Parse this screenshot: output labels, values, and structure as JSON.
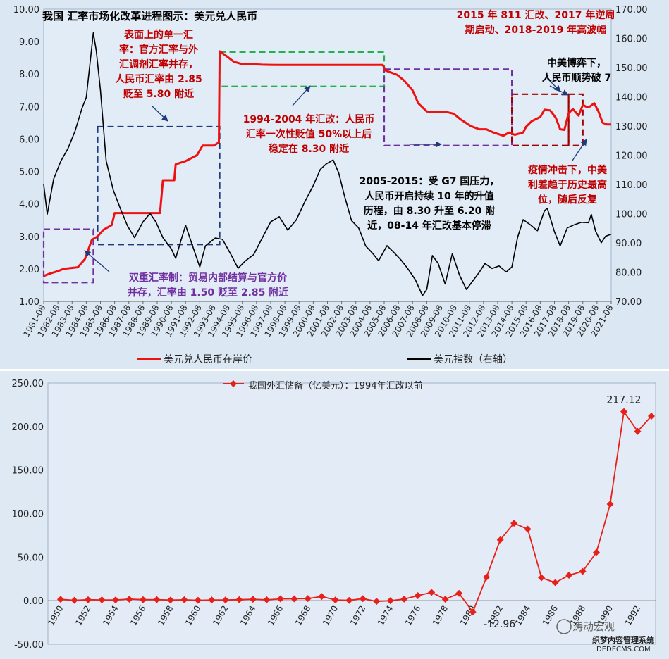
{
  "chart_data": [
    {
      "type": "line",
      "title": "我国 汇率市场化改革进程图示：美元兑人民币",
      "x_ticks": [
        "1981-08",
        "1982-08",
        "1983-08",
        "1984-08",
        "1985-08",
        "1986-08",
        "1987-08",
        "1988-08",
        "1989-08",
        "1990-08",
        "1991-08",
        "1992-08",
        "1993-08",
        "1994-08",
        "1995-08",
        "1996-08",
        "1997-08",
        "1998-08",
        "1999-08",
        "2000-08",
        "2001-08",
        "2002-08",
        "2003-08",
        "2004-08",
        "2005-08",
        "2006-08",
        "2007-08",
        "2008-08",
        "2009-08",
        "2010-08",
        "2011-08",
        "2012-08",
        "2013-08",
        "2014-08",
        "2015-08",
        "2016-08",
        "2017-08",
        "2018-08",
        "2019-08",
        "2020-08",
        "2021-08"
      ],
      "y_left_ticks": [
        "1.00",
        "2.00",
        "3.00",
        "4.00",
        "5.00",
        "6.00",
        "7.00",
        "8.00",
        "9.00",
        "10.00"
      ],
      "y_right_ticks": [
        "70.00",
        "80.00",
        "90.00",
        "100.00",
        "110.00",
        "120.00",
        "130.00",
        "140.00",
        "150.00",
        "160.00",
        "170.00"
      ],
      "ylim_left": [
        1,
        10
      ],
      "ylim_right": [
        70,
        170
      ],
      "legend_position": "bottom",
      "series": [
        {
          "name": "美元兑人民币在岸价",
          "axis": "left",
          "color": "#ee1111",
          "points": [
            [
              1981.6,
              1.78
            ],
            [
              1982.0,
              1.85
            ],
            [
              1982.6,
              1.93
            ],
            [
              1983.0,
              2.0
            ],
            [
              1984.0,
              2.05
            ],
            [
              1984.5,
              2.3
            ],
            [
              1985.0,
              2.9
            ],
            [
              1985.4,
              3.0
            ],
            [
              1985.8,
              3.2
            ],
            [
              1986.4,
              3.35
            ],
            [
              1986.6,
              3.72
            ],
            [
              1988.0,
              3.72
            ],
            [
              1989.8,
              3.72
            ],
            [
              1990.0,
              4.73
            ],
            [
              1990.8,
              4.73
            ],
            [
              1990.9,
              5.22
            ],
            [
              1991.6,
              5.32
            ],
            [
              1992.4,
              5.5
            ],
            [
              1992.8,
              5.8
            ],
            [
              1993.6,
              5.8
            ],
            [
              1993.95,
              5.9
            ],
            [
              1994.0,
              8.7
            ],
            [
              1994.5,
              8.55
            ],
            [
              1995.0,
              8.38
            ],
            [
              1995.5,
              8.32
            ],
            [
              1996.0,
              8.31
            ],
            [
              1997.0,
              8.29
            ],
            [
              1998.0,
              8.28
            ],
            [
              2000.0,
              8.28
            ],
            [
              2003.0,
              8.28
            ],
            [
              2005.5,
              8.28
            ],
            [
              2005.7,
              8.11
            ],
            [
              2006.5,
              7.98
            ],
            [
              2007.0,
              7.8
            ],
            [
              2007.6,
              7.5
            ],
            [
              2008.0,
              7.1
            ],
            [
              2008.6,
              6.85
            ],
            [
              2009.0,
              6.83
            ],
            [
              2010.0,
              6.83
            ],
            [
              2010.5,
              6.78
            ],
            [
              2011.0,
              6.6
            ],
            [
              2011.7,
              6.4
            ],
            [
              2012.3,
              6.3
            ],
            [
              2012.8,
              6.3
            ],
            [
              2013.3,
              6.2
            ],
            [
              2014.0,
              6.1
            ],
            [
              2014.4,
              6.2
            ],
            [
              2014.8,
              6.13
            ],
            [
              2015.4,
              6.2
            ],
            [
              2015.6,
              6.38
            ],
            [
              2016.0,
              6.55
            ],
            [
              2016.6,
              6.68
            ],
            [
              2016.9,
              6.9
            ],
            [
              2017.3,
              6.88
            ],
            [
              2017.7,
              6.65
            ],
            [
              2018.0,
              6.3
            ],
            [
              2018.3,
              6.28
            ],
            [
              2018.6,
              6.8
            ],
            [
              2018.9,
              6.92
            ],
            [
              2019.3,
              6.72
            ],
            [
              2019.6,
              7.05
            ],
            [
              2019.9,
              6.98
            ],
            [
              2020.1,
              7.0
            ],
            [
              2020.4,
              7.1
            ],
            [
              2020.7,
              6.85
            ],
            [
              2021.0,
              6.5
            ],
            [
              2021.3,
              6.45
            ],
            [
              2021.6,
              6.45
            ]
          ]
        },
        {
          "name": "美元指数（右轴）",
          "axis": "right",
          "color": "#000000",
          "points": [
            [
              1981.6,
              110
            ],
            [
              1981.85,
              100
            ],
            [
              1982.3,
              112
            ],
            [
              1982.8,
              118
            ],
            [
              1983.3,
              122
            ],
            [
              1983.8,
              128
            ],
            [
              1984.3,
              136
            ],
            [
              1984.6,
              140
            ],
            [
              1985.1,
              162
            ],
            [
              1985.3,
              156
            ],
            [
              1985.6,
              142
            ],
            [
              1986.0,
              118
            ],
            [
              1986.5,
              108
            ],
            [
              1987.0,
              102
            ],
            [
              1987.5,
              96
            ],
            [
              1988.0,
              92
            ],
            [
              1988.6,
              97
            ],
            [
              1989.1,
              100
            ],
            [
              1989.5,
              97
            ],
            [
              1990.0,
              92
            ],
            [
              1990.6,
              88
            ],
            [
              1990.9,
              85
            ],
            [
              1991.3,
              91
            ],
            [
              1991.6,
              96
            ],
            [
              1992.0,
              90
            ],
            [
              1992.6,
              82
            ],
            [
              1993.0,
              89
            ],
            [
              1993.7,
              92
            ],
            [
              1994.2,
              91
            ],
            [
              1994.8,
              86
            ],
            [
              1995.3,
              81
            ],
            [
              1995.8,
              84
            ],
            [
              1996.4,
              86
            ],
            [
              1997.0,
              92
            ],
            [
              1997.6,
              97
            ],
            [
              1998.2,
              99
            ],
            [
              1998.8,
              94
            ],
            [
              1999.4,
              98
            ],
            [
              2000.0,
              104
            ],
            [
              2000.6,
              110
            ],
            [
              2001.1,
              115
            ],
            [
              2001.5,
              117
            ],
            [
              2002.0,
              118
            ],
            [
              2002.4,
              114
            ],
            [
              2002.8,
              106
            ],
            [
              2003.3,
              98
            ],
            [
              2003.8,
              95
            ],
            [
              2004.3,
              89
            ],
            [
              2004.8,
              86
            ],
            [
              2005.2,
              84
            ],
            [
              2005.8,
              89
            ],
            [
              2006.3,
              87
            ],
            [
              2006.8,
              84
            ],
            [
              2007.3,
              81
            ],
            [
              2007.8,
              77
            ],
            [
              2008.3,
              72
            ],
            [
              2008.6,
              74
            ],
            [
              2009.0,
              86
            ],
            [
              2009.4,
              83
            ],
            [
              2009.9,
              76
            ],
            [
              2010.4,
              86
            ],
            [
              2010.9,
              79
            ],
            [
              2011.4,
              74
            ],
            [
              2011.8,
              77
            ],
            [
              2012.3,
              80
            ],
            [
              2012.7,
              83
            ],
            [
              2013.2,
              81
            ],
            [
              2013.7,
              82
            ],
            [
              2014.2,
              80
            ],
            [
              2014.6,
              82
            ],
            [
              2015.0,
              92
            ],
            [
              2015.4,
              98
            ],
            [
              2015.9,
              96
            ],
            [
              2016.4,
              94
            ],
            [
              2016.9,
              101
            ],
            [
              2017.1,
              102
            ],
            [
              2017.6,
              94
            ],
            [
              2018.0,
              89
            ],
            [
              2018.5,
              95
            ],
            [
              2019.0,
              96
            ],
            [
              2019.5,
              97
            ],
            [
              2020.0,
              97
            ],
            [
              2020.2,
              100
            ],
            [
              2020.5,
              94
            ],
            [
              2020.9,
              90
            ],
            [
              2021.2,
              92
            ],
            [
              2021.6,
              93
            ]
          ]
        }
      ]
    },
    {
      "type": "line",
      "title": "",
      "categories": [
        "1950",
        "1951",
        "1952",
        "1953",
        "1954",
        "1955",
        "1956",
        "1957",
        "1958",
        "1959",
        "1960",
        "1961",
        "1962",
        "1963",
        "1964",
        "1965",
        "1966",
        "1967",
        "1968",
        "1969",
        "1970",
        "1971",
        "1972",
        "1973",
        "1974",
        "1975",
        "1976",
        "1977",
        "1978",
        "1979",
        "1980",
        "1981",
        "1982",
        "1983",
        "1984",
        "1985",
        "1986",
        "1987",
        "1988",
        "1989",
        "1990",
        "1991",
        "1992",
        "1993"
      ],
      "x_tick_labels": [
        "1950",
        "1952",
        "1954",
        "1956",
        "1958",
        "1960",
        "1962",
        "1964",
        "1966",
        "1968",
        "1970",
        "1972",
        "1974",
        "1976",
        "1978",
        "1980",
        "1982",
        "1984",
        "1986",
        "1988",
        "1990",
        "1992"
      ],
      "y_ticks": [
        "-50.00",
        "0.00",
        "50.00",
        "100.00",
        "150.00",
        "200.00",
        "250.00"
      ],
      "ylim": [
        -50,
        250
      ],
      "legend_position": "top",
      "series": [
        {
          "name": "我国外汇储备（亿美元）：1994年汇改以前",
          "color": "#e8201a",
          "values": [
            1.57,
            0.45,
            1.08,
            0.9,
            0.88,
            1.8,
            1.17,
            1.23,
            0.7,
            1.05,
            0.46,
            0.89,
            0.81,
            1.19,
            1.66,
            1.05,
            2.11,
            2.15,
            2.46,
            4.83,
            0.88,
            0.37,
            2.36,
            -0.81,
            0.0,
            1.83,
            5.81,
            9.52,
            1.67,
            8.4,
            -12.96,
            27.08,
            69.86,
            89.01,
            82.2,
            26.44,
            20.72,
            29.23,
            33.72,
            55.5,
            110.93,
            217.12,
            194.43,
            211.99
          ]
        }
      ],
      "data_labels": [
        {
          "category": "1980",
          "text": "-12.96"
        },
        {
          "category": "1991",
          "text": "217.12"
        }
      ]
    }
  ],
  "annotations": {
    "a1": "表面上的单一汇\n率：官方汇率与外\n汇调剂汇率并存，\n人民币汇率由 2.85\n贬至 5.80 附近",
    "a2": "1994-2004 年汇改：人民币\n汇率一次性贬值 50%以上后\n稳定在 8.30 附近",
    "a3": "2015 年 811 汇改、2017 年逆周\n期启动、2018-2019 年高波幅",
    "a4": "中美博弈下，\n人民币顺势破 7",
    "a5": "疫情冲击下，中美\n利差趋于历史最高\n位，随后反复",
    "a6": "2005-2015：受 G7 国压力，\n人民币开启持续 10 年的升值\n历程，由 8.30 升至 6.20 附\n近，08-14 年汇改基本停滞",
    "a7": "双重汇率制：贸易内部结算与官方价\n并存，汇率由 1.50 贬至 2.85 附近"
  },
  "watermark": {
    "wechat_name": "涛动宏观",
    "site_name": "织梦内容管理系统",
    "site_url": "DEDECMS.COM"
  }
}
